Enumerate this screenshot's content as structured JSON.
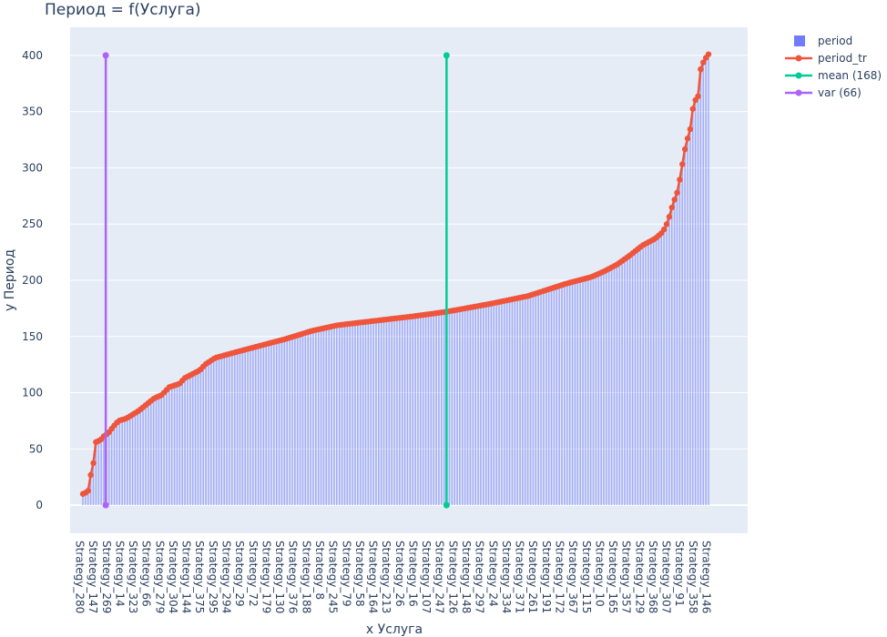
{
  "chart_data": {
    "type": "bar",
    "title": "Период = f(Услуга)",
    "xlabel": "x Услуга",
    "ylabel": "y Период",
    "ylim": [
      -25,
      425
    ],
    "yticks": [
      0,
      50,
      100,
      150,
      200,
      250,
      300,
      350,
      400
    ],
    "grid": true,
    "legend_position": "top-right",
    "colors": {
      "plot_bg": "#e5ecf6",
      "bar": "#636efa",
      "line": "#ef553b",
      "mean": "#00cc96",
      "var": "#ab63fa",
      "text": "#2a3f5f",
      "grid": "#ffffff"
    },
    "n_categories": 240,
    "tick_labels": [
      "Strategy_280",
      "Strategy_147",
      "Strategy_269",
      "Strategy_14",
      "Strategy_323",
      "Strategy_66",
      "Strategy_279",
      "Strategy_304",
      "Strategy_144",
      "Strategy_375",
      "Strategy_295",
      "Strategy_294",
      "Strategy_29",
      "Strategy_72",
      "Strategy_179",
      "Strategy_130",
      "Strategy_376",
      "Strategy_188",
      "Strategy_8",
      "Strategy_245",
      "Strategy_79",
      "Strategy_58",
      "Strategy_164",
      "Strategy_213",
      "Strategy_26",
      "Strategy_16",
      "Strategy_107",
      "Strategy_247",
      "Strategy_126",
      "Strategy_148",
      "Strategy_297",
      "Strategy_24",
      "Strategy_334",
      "Strategy_371",
      "Strategy_261",
      "Strategy_191",
      "Strategy_172",
      "Strategy_367",
      "Strategy_115",
      "Strategy_10",
      "Strategy_165",
      "Strategy_357",
      "Strategy_129",
      "Strategy_368",
      "Strategy_307",
      "Strategy_91",
      "Strategy_358",
      "Strategy_146"
    ],
    "profile_knots": [
      [
        0,
        10
      ],
      [
        2,
        12
      ],
      [
        3,
        26
      ],
      [
        4,
        35
      ],
      [
        5,
        56
      ],
      [
        7,
        58
      ],
      [
        8,
        61
      ],
      [
        10,
        64
      ],
      [
        12,
        70
      ],
      [
        14,
        75
      ],
      [
        17,
        77
      ],
      [
        22,
        84
      ],
      [
        28,
        95
      ],
      [
        31,
        98
      ],
      [
        34,
        105
      ],
      [
        38,
        108
      ],
      [
        40,
        113
      ],
      [
        46,
        120
      ],
      [
        48,
        125
      ],
      [
        52,
        131
      ],
      [
        60,
        136
      ],
      [
        70,
        142
      ],
      [
        80,
        148
      ],
      [
        90,
        155
      ],
      [
        100,
        160
      ],
      [
        115,
        164
      ],
      [
        130,
        168
      ],
      [
        143,
        172
      ],
      [
        160,
        179
      ],
      [
        175,
        186
      ],
      [
        190,
        197
      ],
      [
        200,
        203
      ],
      [
        205,
        208
      ],
      [
        210,
        214
      ],
      [
        215,
        222
      ],
      [
        220,
        231
      ],
      [
        225,
        237
      ],
      [
        228,
        243
      ],
      [
        230,
        252
      ],
      [
        232,
        268
      ],
      [
        234,
        280
      ],
      [
        235,
        294
      ],
      [
        237,
        320
      ],
      [
        239,
        336
      ],
      [
        240,
        356
      ],
      [
        241,
        361
      ],
      [
        242,
        364
      ],
      [
        243,
        390
      ],
      [
        244,
        394
      ],
      [
        245,
        398
      ],
      [
        246,
        401
      ]
    ],
    "series": [
      {
        "name": "period",
        "kind": "bar"
      },
      {
        "name": "period_tr",
        "kind": "line"
      },
      {
        "name": "mean (168)",
        "kind": "vline",
        "x_index": 143,
        "y": [
          0,
          400
        ]
      },
      {
        "name": "var (66)",
        "kind": "vline",
        "x_index": 9,
        "y": [
          0,
          400
        ]
      }
    ]
  }
}
